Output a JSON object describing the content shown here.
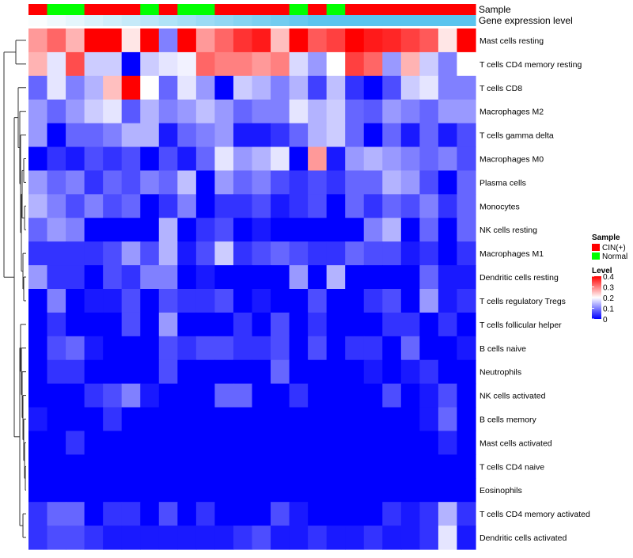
{
  "chart_data": {
    "type": "heatmap",
    "title": "",
    "annotation_tracks": [
      {
        "name": "Sample",
        "values": [
          "CIN(+)",
          "Normal",
          "Normal",
          "CIN(+)",
          "CIN(+)",
          "CIN(+)",
          "Normal",
          "CIN(+)",
          "Normal",
          "Normal",
          "CIN(+)",
          "CIN(+)",
          "CIN(+)",
          "CIN(+)",
          "Normal",
          "CIN(+)",
          "Normal",
          "CIN(+)",
          "CIN(+)",
          "CIN(+)",
          "CIN(+)",
          "CIN(+)",
          "CIN(+)",
          "CIN(+)"
        ]
      },
      {
        "name": "Gene expression level",
        "values": [
          0.02,
          0.06,
          0.1,
          0.14,
          0.18,
          0.22,
          0.26,
          0.3,
          0.34,
          0.38,
          0.42,
          0.46,
          0.5,
          0.54,
          0.58,
          0.62,
          0.66,
          0.7,
          0.74,
          0.78,
          0.82,
          0.86,
          0.9,
          0.94
        ]
      }
    ],
    "rows": [
      {
        "label": "Mast cells resting",
        "values": [
          0.28,
          0.32,
          0.26,
          0.4,
          0.4,
          0.22,
          0.4,
          0.1,
          0.4,
          0.28,
          0.32,
          0.36,
          0.38,
          0.25,
          0.4,
          0.33,
          0.35,
          0.4,
          0.38,
          0.37,
          0.35,
          0.33,
          0.22,
          0.4
        ]
      },
      {
        "label": "T cells CD4 memory resting",
        "values": [
          0.26,
          0.18,
          0.34,
          0.16,
          0.16,
          0.0,
          0.16,
          0.18,
          0.19,
          0.32,
          0.3,
          0.3,
          0.28,
          0.3,
          0.17,
          0.12,
          0.2,
          0.35,
          0.32,
          0.12,
          0.26,
          0.16,
          0.1,
          0.2
        ]
      },
      {
        "label": "T cells CD8",
        "values": [
          0.08,
          0.18,
          0.1,
          0.14,
          0.25,
          0.4,
          0.2,
          0.08,
          0.18,
          0.12,
          0.0,
          0.16,
          0.14,
          0.1,
          0.14,
          0.05,
          0.15,
          0.04,
          0.0,
          0.06,
          0.16,
          0.18,
          0.1,
          0.1
        ]
      },
      {
        "label": "Macrophages M2",
        "values": [
          0.12,
          0.08,
          0.12,
          0.16,
          0.18,
          0.07,
          0.14,
          0.1,
          0.12,
          0.15,
          0.12,
          0.08,
          0.1,
          0.1,
          0.18,
          0.14,
          0.16,
          0.08,
          0.07,
          0.12,
          0.1,
          0.08,
          0.12,
          0.12
        ]
      },
      {
        "label": "T cells gamma delta",
        "values": [
          0.12,
          0.0,
          0.08,
          0.08,
          0.1,
          0.14,
          0.14,
          0.02,
          0.08,
          0.1,
          0.12,
          0.02,
          0.02,
          0.04,
          0.08,
          0.14,
          0.16,
          0.08,
          0.0,
          0.08,
          0.02,
          0.08,
          0.02,
          0.06
        ]
      },
      {
        "label": "Macrophages M0",
        "values": [
          0.0,
          0.04,
          0.02,
          0.06,
          0.04,
          0.06,
          0.0,
          0.06,
          0.02,
          0.08,
          0.18,
          0.12,
          0.14,
          0.18,
          0.0,
          0.28,
          0.02,
          0.12,
          0.14,
          0.12,
          0.1,
          0.08,
          0.1,
          0.06
        ]
      },
      {
        "label": "Plasma cells",
        "values": [
          0.12,
          0.08,
          0.1,
          0.04,
          0.08,
          0.06,
          0.1,
          0.08,
          0.15,
          0.0,
          0.12,
          0.08,
          0.1,
          0.06,
          0.04,
          0.06,
          0.04,
          0.08,
          0.08,
          0.14,
          0.12,
          0.06,
          0.0,
          0.08
        ]
      },
      {
        "label": "Monocytes",
        "values": [
          0.14,
          0.1,
          0.06,
          0.1,
          0.06,
          0.08,
          0.0,
          0.04,
          0.1,
          0.0,
          0.04,
          0.04,
          0.06,
          0.02,
          0.04,
          0.06,
          0.0,
          0.08,
          0.04,
          0.08,
          0.06,
          0.1,
          0.04,
          0.08
        ]
      },
      {
        "label": "NK cells resting",
        "values": [
          0.08,
          0.12,
          0.1,
          0.0,
          0.0,
          0.0,
          0.0,
          0.14,
          0.0,
          0.04,
          0.06,
          0.0,
          0.02,
          0.0,
          0.0,
          0.0,
          0.0,
          0.0,
          0.1,
          0.14,
          0.0,
          0.08,
          0.0,
          0.08
        ]
      },
      {
        "label": "Macrophages M1",
        "values": [
          0.04,
          0.04,
          0.04,
          0.04,
          0.06,
          0.12,
          0.06,
          0.14,
          0.02,
          0.06,
          0.16,
          0.04,
          0.06,
          0.08,
          0.06,
          0.04,
          0.04,
          0.08,
          0.06,
          0.06,
          0.02,
          0.04,
          0.0,
          0.04
        ]
      },
      {
        "label": "Dendritic cells resting",
        "values": [
          0.12,
          0.04,
          0.04,
          0.0,
          0.06,
          0.04,
          0.1,
          0.1,
          0.0,
          0.02,
          0.0,
          0.0,
          0.0,
          0.0,
          0.12,
          0.0,
          0.14,
          0.0,
          0.0,
          0.0,
          0.0,
          0.08,
          0.02,
          0.02
        ]
      },
      {
        "label": "T cells regulatory  Tregs",
        "values": [
          0.0,
          0.1,
          0.0,
          0.02,
          0.02,
          0.06,
          0.0,
          0.06,
          0.04,
          0.04,
          0.06,
          0.0,
          0.02,
          0.0,
          0.0,
          0.06,
          0.0,
          0.0,
          0.04,
          0.06,
          0.0,
          0.12,
          0.02,
          0.04
        ]
      },
      {
        "label": "T cells follicular helper",
        "values": [
          0.0,
          0.04,
          0.0,
          0.0,
          0.0,
          0.06,
          0.0,
          0.12,
          0.0,
          0.0,
          0.0,
          0.04,
          0.0,
          0.06,
          0.0,
          0.04,
          0.0,
          0.0,
          0.0,
          0.04,
          0.04,
          0.0,
          0.04,
          0.0
        ]
      },
      {
        "label": "B cells naive",
        "values": [
          0.0,
          0.06,
          0.08,
          0.02,
          0.0,
          0.0,
          0.0,
          0.06,
          0.04,
          0.06,
          0.06,
          0.04,
          0.04,
          0.06,
          0.0,
          0.06,
          0.0,
          0.04,
          0.04,
          0.0,
          0.08,
          0.0,
          0.0,
          0.02
        ]
      },
      {
        "label": "Neutrophils",
        "values": [
          0.0,
          0.04,
          0.04,
          0.0,
          0.0,
          0.0,
          0.0,
          0.06,
          0.0,
          0.0,
          0.0,
          0.0,
          0.0,
          0.08,
          0.0,
          0.0,
          0.0,
          0.0,
          0.02,
          0.0,
          0.02,
          0.04,
          0.0,
          0.0
        ]
      },
      {
        "label": "NK cells activated",
        "values": [
          0.0,
          0.0,
          0.0,
          0.04,
          0.06,
          0.1,
          0.02,
          0.0,
          0.0,
          0.0,
          0.08,
          0.08,
          0.0,
          0.0,
          0.04,
          0.0,
          0.0,
          0.0,
          0.0,
          0.06,
          0.0,
          0.02,
          0.06,
          0.0
        ]
      },
      {
        "label": "B cells memory",
        "values": [
          0.02,
          0.0,
          0.0,
          0.0,
          0.04,
          0.0,
          0.0,
          0.0,
          0.0,
          0.0,
          0.0,
          0.0,
          0.0,
          0.0,
          0.0,
          0.0,
          0.0,
          0.0,
          0.0,
          0.0,
          0.0,
          0.02,
          0.08,
          0.0
        ]
      },
      {
        "label": "Mast cells activated",
        "values": [
          0.0,
          0.0,
          0.04,
          0.0,
          0.0,
          0.0,
          0.0,
          0.0,
          0.0,
          0.0,
          0.0,
          0.0,
          0.0,
          0.0,
          0.0,
          0.0,
          0.0,
          0.0,
          0.0,
          0.0,
          0.0,
          0.0,
          0.03,
          0.0
        ]
      },
      {
        "label": "T cells CD4 naive",
        "values": [
          0.0,
          0.0,
          0.0,
          0.0,
          0.0,
          0.0,
          0.0,
          0.0,
          0.0,
          0.0,
          0.0,
          0.0,
          0.0,
          0.0,
          0.0,
          0.0,
          0.0,
          0.0,
          0.0,
          0.0,
          0.0,
          0.0,
          0.0,
          0.0
        ]
      },
      {
        "label": "Eosinophils",
        "values": [
          0.0,
          0.0,
          0.0,
          0.0,
          0.0,
          0.0,
          0.0,
          0.0,
          0.0,
          0.0,
          0.0,
          0.0,
          0.0,
          0.0,
          0.0,
          0.0,
          0.0,
          0.0,
          0.0,
          0.0,
          0.0,
          0.0,
          0.0,
          0.0
        ]
      },
      {
        "label": "T cells CD4 memory activated",
        "values": [
          0.04,
          0.08,
          0.08,
          0.0,
          0.04,
          0.04,
          0.0,
          0.06,
          0.0,
          0.04,
          0.0,
          0.0,
          0.0,
          0.06,
          0.02,
          0.0,
          0.0,
          0.0,
          0.0,
          0.04,
          0.02,
          0.04,
          0.14,
          0.04
        ]
      },
      {
        "label": "Dendritic cells activated",
        "values": [
          0.04,
          0.06,
          0.06,
          0.04,
          0.02,
          0.02,
          0.02,
          0.02,
          0.02,
          0.02,
          0.02,
          0.04,
          0.06,
          0.02,
          0.02,
          0.04,
          0.02,
          0.02,
          0.04,
          0.02,
          0.02,
          0.04,
          0.18,
          0.02
        ]
      }
    ],
    "legend": {
      "sample_title": "Sample",
      "sample_items": [
        {
          "label": "CIN(+)",
          "color": "#ff0000"
        },
        {
          "label": "Normal",
          "color": "#00ff00"
        }
      ],
      "level_title": "Level",
      "level_ticks": [
        0.4,
        0.3,
        0.2,
        0.1,
        0
      ],
      "level_range": [
        0,
        0.4
      ],
      "level_colors": {
        "low": "#0000ff",
        "mid": "#ffffff",
        "high": "#ff0000"
      }
    },
    "track_colors": {
      "gene_low": "#ffffff",
      "gene_high": "#5bc4ee"
    }
  }
}
